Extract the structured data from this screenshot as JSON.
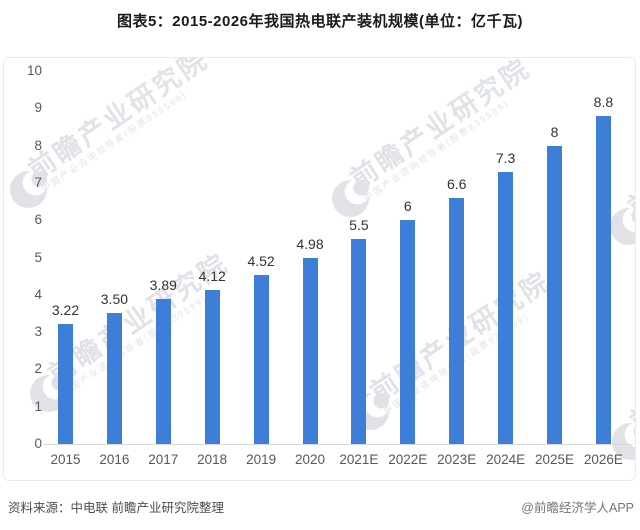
{
  "header": {
    "title": "图表5：2015-2026年我国热电联产装机规模(单位：亿千瓦)"
  },
  "chart_data": {
    "type": "bar",
    "title": "图表5：2015-2026年我国热电联产装机规模(单位：亿千瓦)",
    "unit": "亿千瓦",
    "categories": [
      "2015",
      "2016",
      "2017",
      "2018",
      "2019",
      "2020",
      "2021E",
      "2022E",
      "2023E",
      "2024E",
      "2025E",
      "2026E"
    ],
    "values": [
      3.22,
      3.5,
      3.89,
      4.12,
      4.52,
      4.98,
      5.5,
      6,
      6.6,
      7.3,
      8,
      8.8
    ],
    "value_labels": [
      "3.22",
      "3.50",
      "3.89",
      "4.12",
      "4.52",
      "4.98",
      "5.5",
      "6",
      "6.6",
      "7.3",
      "8",
      "8.8"
    ],
    "xlabel": "",
    "ylabel": "",
    "ylim": [
      0,
      10
    ],
    "yticks": [
      0,
      1,
      2,
      3,
      4,
      5,
      6,
      7,
      8,
      9,
      10
    ],
    "grid": false,
    "legend": false,
    "bar_color": "#3D7ED9",
    "axis_line_color": "#d8d8d8",
    "tick_label_color": "#595959",
    "value_label_color": "#333333"
  },
  "watermark": {
    "brand": "前瞻产业研究院",
    "tagline": "中国产业咨询领导者(股票839599)",
    "color": "#c7ccd4"
  },
  "footer": {
    "source": "资料来源：中电联 前瞻产业研究院整理",
    "credit": "@前瞻经济学人APP"
  }
}
